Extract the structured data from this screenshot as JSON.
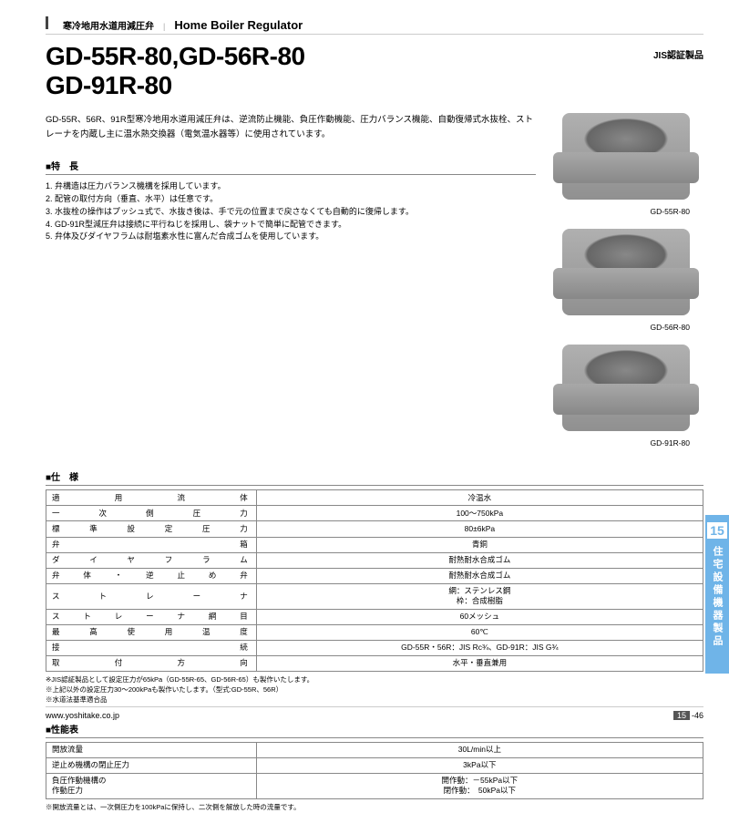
{
  "header": {
    "category_jp": "寒冷地用水道用減圧弁",
    "category_en": "Home Boiler Regulator"
  },
  "title": {
    "line1": "GD-55R-80,GD-56R-80",
    "line2": "GD-91R-80",
    "jis": "JIS認証製品"
  },
  "intro": "GD-55R、56R、91R型寒冷地用水道用減圧弁は、逆流防止機能、負圧作動機能、圧力バランス機能、自動復帰式水抜栓、ストレーナを内蔵し主に温水熱交換器（電気温水器等）に使用されています。",
  "features_hd": "■特　長",
  "features": [
    "1. 弁構造は圧力バランス機構を採用しています。",
    "2. 配管の取付方向（垂直、水平）は任意です。",
    "3. 水抜栓の操作はプッシュ式で、水抜き後は、手で元の位置まで戻さなくても自動的に復帰します。",
    "4. GD-91R型減圧弁は接続に平行ねじを採用し、袋ナットで簡単に配管できます。",
    "5. 弁体及びダイヤフラムは耐塩素水性に富んだ合成ゴムを使用しています。"
  ],
  "images": [
    {
      "label": "GD-55R-80"
    },
    {
      "label": "GD-56R-80"
    },
    {
      "label": "GD-91R-80"
    }
  ],
  "spec_hd": "■仕　様",
  "spec": [
    {
      "k": "適用流体",
      "v": "冷温水"
    },
    {
      "k": "一次側圧力",
      "v": "100～750kPa"
    },
    {
      "k": "標準設定圧力",
      "v": "80±6kPa"
    },
    {
      "k": "弁箱",
      "v": "青銅"
    },
    {
      "k": "ダイヤフラム",
      "v": "耐熱耐水合成ゴム"
    },
    {
      "k": "弁体・逆止め弁",
      "v": "耐熱耐水合成ゴム"
    },
    {
      "k": "ストレーナ",
      "v": "網：ステンレス鋼\n枠：合成樹脂"
    },
    {
      "k": "ストレーナ網目",
      "v": "60メッシュ"
    },
    {
      "k": "最高使用温度",
      "v": "60℃"
    },
    {
      "k": "接続",
      "v": "GD-55R・56R：JIS Rc¾、GD-91R：JIS G¾"
    },
    {
      "k": "取付方向",
      "v": "水平・垂直兼用"
    }
  ],
  "spec_notes": [
    "※JIS認証製品として設定圧力が65kPa（GD-55R-65、GD-56R-65）も製作いたします。",
    "※上記以外の設定圧力30～200kPaも製作いたします。（型式:GD-55R、56R）",
    "※水道法基準適合品"
  ],
  "perf_hd": "■性能表",
  "perf": [
    {
      "k": "開放流量",
      "v": "30L/min以上"
    },
    {
      "k": "逆止め機構の閉止圧力",
      "v": "3kPa以下"
    },
    {
      "k": "負圧作動機構の\n作動圧力",
      "v": "開作動：－55kPa以下\n閉作動：　50kPa以下"
    }
  ],
  "perf_notes": [
    "※開放流量とは、一次側圧力を100kPaに保持し、二次側を解放した時の流量です。"
  ],
  "sidetab": {
    "num": "15",
    "txt": "住宅設備機器製品"
  },
  "footer": {
    "url": "www.yoshitake.co.jp",
    "section": "15",
    "page": "-46"
  }
}
